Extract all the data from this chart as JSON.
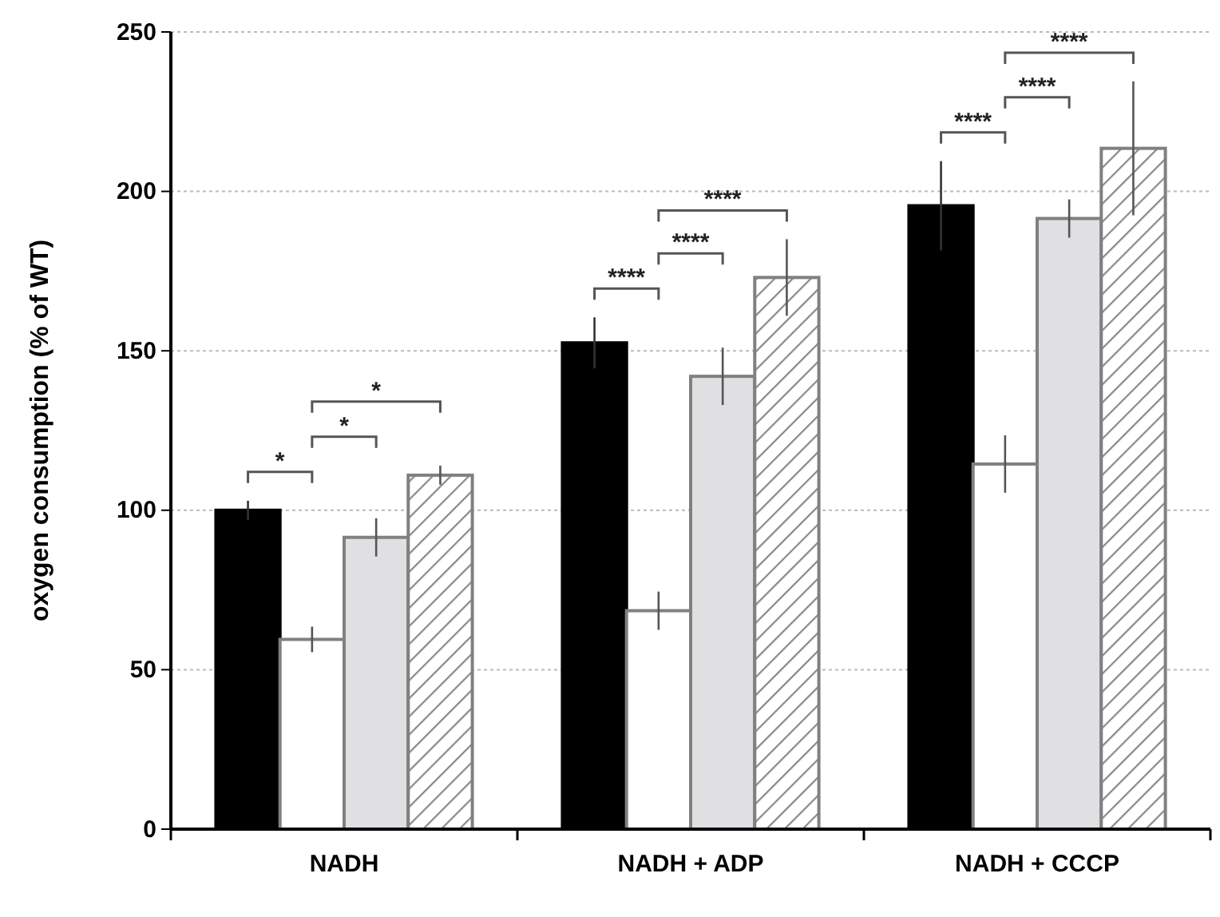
{
  "chart_data": {
    "type": "bar",
    "ylabel": "oxygen consumption (% of WT)",
    "categories": [
      "NADH",
      "NADH + ADP",
      "NADH + CCCP"
    ],
    "series": [
      {
        "color": "#000000",
        "values": [
          100,
          152.5,
          195.5
        ],
        "errors": [
          3,
          8,
          14
        ]
      },
      {
        "color": "#ffffff",
        "values": [
          59.5,
          68.5,
          114.5
        ],
        "errors": [
          4,
          6,
          9
        ]
      },
      {
        "color": "#e0e0e2",
        "values": [
          91.5,
          142,
          191.5
        ],
        "errors": [
          6,
          9,
          6
        ]
      },
      {
        "color": "#888888",
        "values": [
          111,
          173,
          213.5
        ],
        "errors": [
          3,
          12,
          21
        ]
      }
    ],
    "ylim": [
      0,
      250
    ],
    "yticks": [
      0,
      50,
      100,
      150,
      200,
      250
    ],
    "grid": "y",
    "annotations": [
      "*",
      "*",
      "*",
      "****",
      "****",
      "****",
      "****",
      "****",
      "****"
    ]
  }
}
